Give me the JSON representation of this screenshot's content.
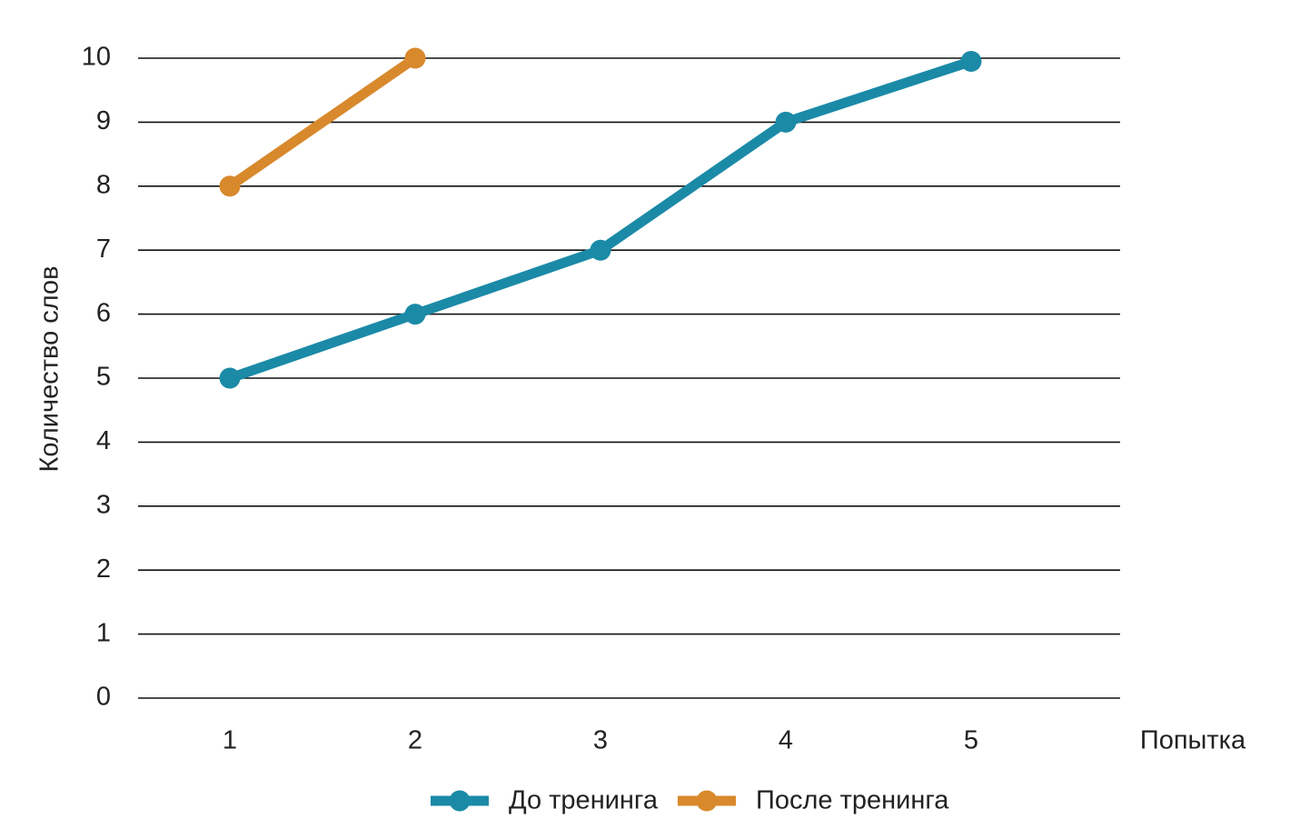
{
  "chart_data": {
    "type": "line",
    "y_label": "Количество слов",
    "x_label": "Попытка",
    "categories": [
      "1",
      "2",
      "3",
      "4",
      "5"
    ],
    "series": [
      {
        "name": "До тренинга",
        "color": "#1b8aa7",
        "values": [
          5,
          6,
          7,
          9,
          9.95
        ]
      },
      {
        "name": "После тренинга",
        "color": "#d8892c",
        "values": [
          8,
          10,
          null,
          null,
          null
        ]
      }
    ],
    "ylim": [
      0,
      10
    ],
    "yticks": [
      0,
      1,
      2,
      3,
      4,
      5,
      6,
      7,
      8,
      9,
      10
    ],
    "grid": true,
    "legend": "bottom"
  }
}
